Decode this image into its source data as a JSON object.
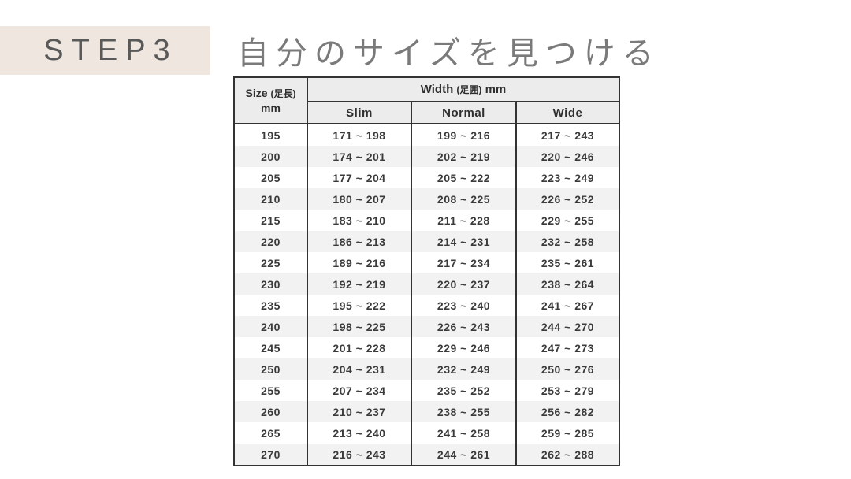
{
  "step_badge": {
    "label": "STEP3",
    "bg_color": "#efe6df",
    "text_color": "#595959"
  },
  "title": {
    "text": "自分のサイズを見つける",
    "text_color": "#7a7a7a"
  },
  "table": {
    "size_column": {
      "label_en": "Size",
      "label_jp": "(足長)",
      "unit": "mm"
    },
    "width_group": {
      "label_en": "Width",
      "label_jp": "(足囲)",
      "unit": "mm"
    },
    "columns": [
      "Slim",
      "Normal",
      "Wide"
    ],
    "range_separator": "~",
    "colors": {
      "border": "#333333",
      "header_bg": "#ececec",
      "row_alt_bg": "#f2f2f2",
      "text": "#3a3a3a"
    },
    "rows": [
      {
        "size": "195",
        "slim": "171 ~ 198",
        "normal": "199 ~ 216",
        "wide": "217 ~ 243"
      },
      {
        "size": "200",
        "slim": "174 ~ 201",
        "normal": "202 ~ 219",
        "wide": "220 ~ 246"
      },
      {
        "size": "205",
        "slim": "177 ~ 204",
        "normal": "205 ~ 222",
        "wide": "223 ~ 249"
      },
      {
        "size": "210",
        "slim": "180 ~ 207",
        "normal": "208 ~ 225",
        "wide": "226 ~ 252"
      },
      {
        "size": "215",
        "slim": "183 ~ 210",
        "normal": "211 ~ 228",
        "wide": "229 ~ 255"
      },
      {
        "size": "220",
        "slim": "186 ~ 213",
        "normal": "214 ~ 231",
        "wide": "232 ~ 258"
      },
      {
        "size": "225",
        "slim": "189 ~ 216",
        "normal": "217 ~ 234",
        "wide": "235 ~ 261"
      },
      {
        "size": "230",
        "slim": "192 ~ 219",
        "normal": "220 ~ 237",
        "wide": "238 ~ 264"
      },
      {
        "size": "235",
        "slim": "195 ~ 222",
        "normal": "223 ~ 240",
        "wide": "241 ~ 267"
      },
      {
        "size": "240",
        "slim": "198 ~ 225",
        "normal": "226 ~ 243",
        "wide": "244 ~ 270"
      },
      {
        "size": "245",
        "slim": "201 ~ 228",
        "normal": "229 ~ 246",
        "wide": "247 ~ 273"
      },
      {
        "size": "250",
        "slim": "204 ~ 231",
        "normal": "232 ~ 249",
        "wide": "250 ~ 276"
      },
      {
        "size": "255",
        "slim": "207 ~ 234",
        "normal": "235 ~ 252",
        "wide": "253 ~ 279"
      },
      {
        "size": "260",
        "slim": "210 ~ 237",
        "normal": "238 ~ 255",
        "wide": "256 ~ 282"
      },
      {
        "size": "265",
        "slim": "213 ~ 240",
        "normal": "241 ~ 258",
        "wide": "259 ~ 285"
      },
      {
        "size": "270",
        "slim": "216 ~ 243",
        "normal": "244 ~ 261",
        "wide": "262 ~ 288"
      }
    ]
  }
}
